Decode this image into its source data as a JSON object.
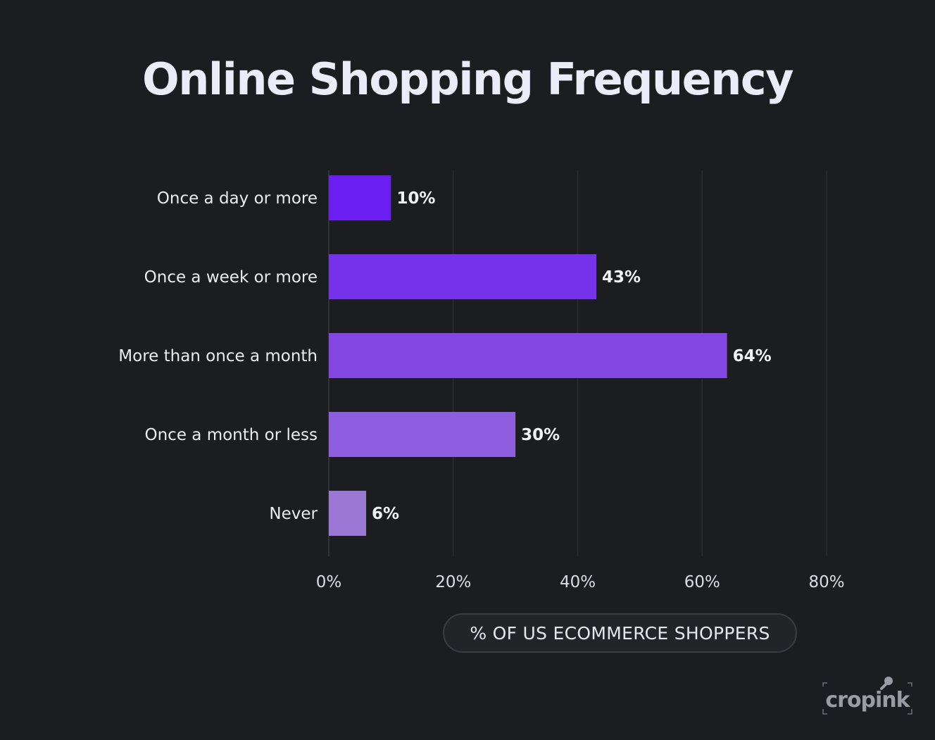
{
  "chart_data": {
    "type": "bar",
    "orientation": "horizontal",
    "title": "Online Shopping Frequency",
    "categories": [
      "Once a day or more",
      "Once a week or more",
      "More than once a month",
      "Once a month or less",
      "Never"
    ],
    "values": [
      10,
      43,
      64,
      30,
      6
    ],
    "value_labels": [
      "10%",
      "43%",
      "64%",
      "30%",
      "6%"
    ],
    "xlabel": "% OF US ECOMMERCE SHOPPERS",
    "ylabel": "",
    "xlim": [
      0,
      80
    ],
    "x_ticks": [
      0,
      20,
      40,
      60,
      80
    ],
    "x_tick_labels": [
      "0%",
      "20%",
      "40%",
      "60%",
      "80%"
    ],
    "grid": true,
    "colors": [
      "#6a1ff0",
      "#7631eb",
      "#8347e4",
      "#8f5ddf",
      "#9b78d6"
    ]
  },
  "branding": {
    "logo_text": "cropink",
    "logo_color": "#9a9ba3"
  },
  "background": "#1c1d20"
}
